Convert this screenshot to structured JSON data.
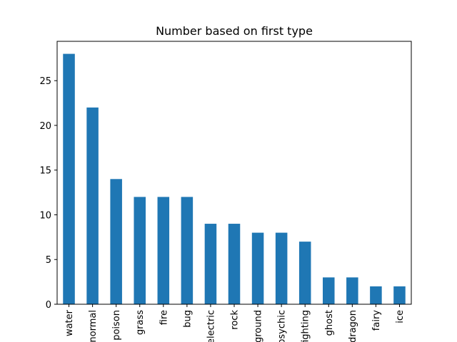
{
  "chart_data": {
    "type": "bar",
    "title": "Number based on first type",
    "xlabel": "",
    "ylabel": "",
    "categories": [
      "water",
      "normal",
      "poison",
      "grass",
      "fire",
      "bug",
      "electric",
      "rock",
      "ground",
      "psychic",
      "fighting",
      "ghost",
      "dragon",
      "fairy",
      "ice"
    ],
    "values": [
      28,
      22,
      14,
      12,
      12,
      12,
      9,
      9,
      8,
      8,
      7,
      3,
      3,
      2,
      2
    ],
    "ylim": [
      0,
      29.4
    ],
    "yticks": [
      0,
      5,
      10,
      15,
      20,
      25
    ],
    "grid": false,
    "legend": "none",
    "bar_color": "#1f77b4"
  }
}
